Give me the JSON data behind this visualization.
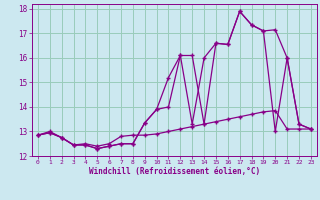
{
  "title": "Windchill (Refroidissement éolien,°C)",
  "background_color": "#cce8f0",
  "grid_color": "#99ccbb",
  "line_color": "#880088",
  "marker": "+",
  "xlim": [
    -0.5,
    23.5
  ],
  "ylim": [
    12,
    18.2
  ],
  "xticks": [
    0,
    1,
    2,
    3,
    4,
    5,
    6,
    7,
    8,
    9,
    10,
    11,
    12,
    13,
    14,
    15,
    16,
    17,
    18,
    19,
    20,
    21,
    22,
    23
  ],
  "yticks": [
    12,
    13,
    14,
    15,
    16,
    17,
    18
  ],
  "series1_x": [
    0,
    1,
    2,
    3,
    4,
    5,
    6,
    7,
    8,
    9,
    10,
    11,
    12,
    13,
    14,
    15,
    16,
    17,
    18,
    19,
    20,
    21,
    22,
    23
  ],
  "series1_y": [
    12.85,
    12.95,
    12.75,
    12.45,
    12.45,
    12.3,
    12.4,
    12.5,
    12.5,
    13.35,
    13.9,
    14.0,
    16.1,
    16.1,
    13.3,
    16.6,
    16.55,
    17.9,
    17.35,
    17.1,
    13.0,
    16.0,
    13.3,
    13.1
  ],
  "series2_x": [
    0,
    1,
    2,
    3,
    4,
    5,
    6,
    7,
    8,
    9,
    10,
    11,
    12,
    13,
    14,
    15,
    16,
    17,
    18,
    19,
    20,
    21,
    22,
    23
  ],
  "series2_y": [
    12.85,
    12.95,
    12.75,
    12.45,
    12.45,
    12.3,
    12.4,
    12.5,
    12.5,
    13.35,
    13.9,
    15.2,
    16.1,
    13.3,
    16.0,
    16.6,
    16.55,
    17.9,
    17.35,
    17.1,
    17.15,
    16.0,
    13.3,
    13.1
  ],
  "series3_x": [
    0,
    1,
    2,
    3,
    4,
    5,
    6,
    7,
    8,
    9,
    10,
    11,
    12,
    13,
    14,
    15,
    16,
    17,
    18,
    19,
    20,
    21,
    22,
    23
  ],
  "series3_y": [
    12.85,
    13.0,
    12.75,
    12.45,
    12.5,
    12.4,
    12.5,
    12.8,
    12.85,
    12.85,
    12.9,
    13.0,
    13.1,
    13.2,
    13.3,
    13.4,
    13.5,
    13.6,
    13.7,
    13.8,
    13.85,
    13.1,
    13.1,
    13.1
  ]
}
